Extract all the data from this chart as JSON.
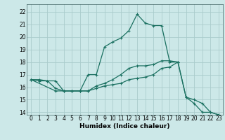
{
  "xlabel": "Humidex (Indice chaleur)",
  "bg_color": "#cce8e8",
  "grid_color": "#aacccc",
  "line_color": "#1a7060",
  "xlim": [
    -0.5,
    23.5
  ],
  "ylim": [
    13.8,
    22.6
  ],
  "xticks": [
    0,
    1,
    2,
    3,
    4,
    5,
    6,
    7,
    8,
    9,
    10,
    11,
    12,
    13,
    14,
    15,
    16,
    17,
    18,
    19,
    20,
    21,
    22,
    23
  ],
  "yticks": [
    14,
    15,
    16,
    17,
    18,
    19,
    20,
    21,
    22
  ],
  "line1_x": [
    0,
    1,
    2,
    3,
    4,
    5,
    6,
    7,
    8,
    9,
    10,
    11,
    12,
    13,
    14,
    15,
    16,
    17,
    18
  ],
  "line1_y": [
    16.6,
    16.6,
    16.5,
    15.9,
    15.7,
    15.7,
    15.7,
    17.0,
    17.0,
    19.2,
    19.6,
    19.9,
    20.5,
    21.8,
    21.1,
    20.9,
    20.9,
    18.0,
    18.0
  ],
  "line2_x": [
    0,
    1,
    2,
    3,
    4,
    5,
    6,
    7,
    8,
    9,
    10,
    11,
    12,
    13,
    14,
    15,
    16,
    17,
    18,
    19,
    20,
    21,
    22,
    23
  ],
  "line2_y": [
    16.6,
    16.5,
    16.5,
    16.5,
    15.7,
    15.7,
    15.7,
    15.7,
    16.1,
    16.3,
    16.6,
    17.0,
    17.5,
    17.7,
    17.7,
    17.8,
    18.1,
    18.1,
    18.0,
    15.2,
    14.7,
    14.0,
    14.0,
    13.8
  ],
  "line3_x": [
    0,
    3,
    4,
    5,
    6,
    7,
    8,
    9,
    10,
    11,
    12,
    13,
    14,
    15,
    16,
    17,
    18,
    19,
    20,
    21,
    22,
    23
  ],
  "line3_y": [
    16.6,
    15.7,
    15.7,
    15.7,
    15.7,
    15.7,
    15.9,
    16.1,
    16.2,
    16.3,
    16.6,
    16.7,
    16.8,
    17.0,
    17.5,
    17.6,
    18.0,
    15.2,
    15.0,
    14.7,
    14.0,
    13.8
  ]
}
